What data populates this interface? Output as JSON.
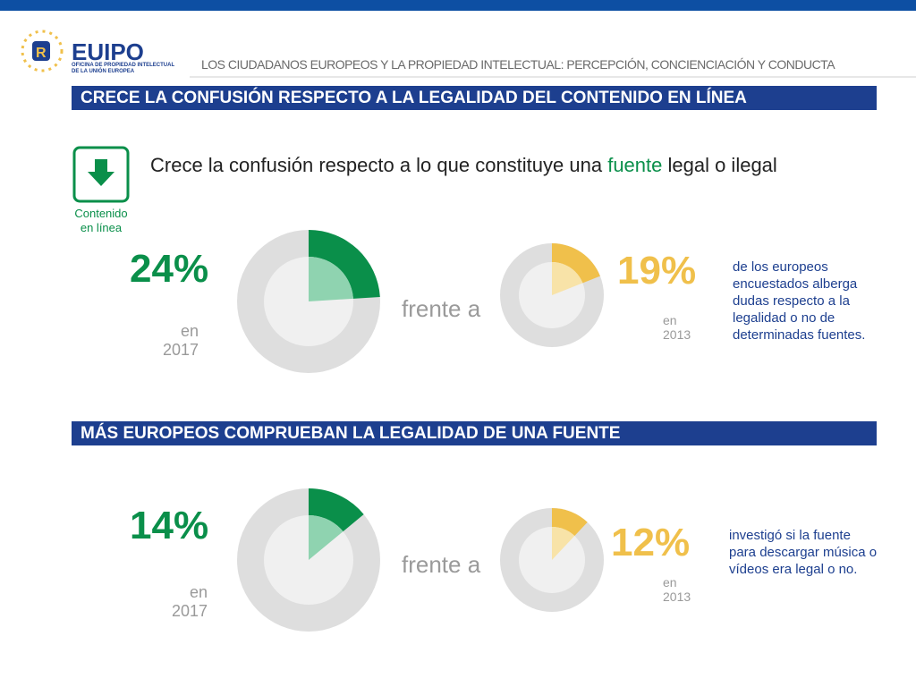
{
  "header": {
    "logo_text": "EUIPO",
    "logo_subtitle_lines": [
      "OFICINA DE PROPIEDAD INTELECTUAL",
      "DE LA UNIÓN EUROPEA"
    ],
    "report_title": "LOS CIUDADANOS EUROPEOS Y LA PROPIEDAD INTELECTUAL: PERCEPCIÓN, CONCIENCIACIÓN Y CONDUCTA"
  },
  "intro": {
    "headline_before": "Crece la confusión respecto a lo que constituye una ",
    "headline_highlight": "fuente",
    "headline_after": " legal o ilegal",
    "icon_caption": "Contenido en línea"
  },
  "sections": [
    {
      "heading": "CRECE LA CONFUSIÓN RESPECTO A LA LEGALIDAD DEL CONTENIDO EN LÍNEA",
      "current": {
        "value": 24,
        "value_label": "24%",
        "year_lines": [
          "en",
          "2017"
        ]
      },
      "connector": "frente a",
      "previous": {
        "value": 19,
        "value_label": "19%",
        "year_lines": [
          "en",
          "2013"
        ]
      },
      "description": "de los europeos encuestados alberga dudas respecto a la legalidad o no de determinadas fuentes."
    },
    {
      "heading": "MÁS EUROPEOS COMPRUEBAN LA LEGALIDAD DE UNA FUENTE",
      "current": {
        "value": 14,
        "value_label": "14%",
        "year_lines": [
          "en",
          "2017"
        ]
      },
      "connector": "frente a",
      "previous": {
        "value": 12,
        "value_label": "12%",
        "year_lines": [
          "en",
          "2013"
        ]
      },
      "description": "investigó si la fuente para descargar música o vídeos era legal o no."
    }
  ]
}
